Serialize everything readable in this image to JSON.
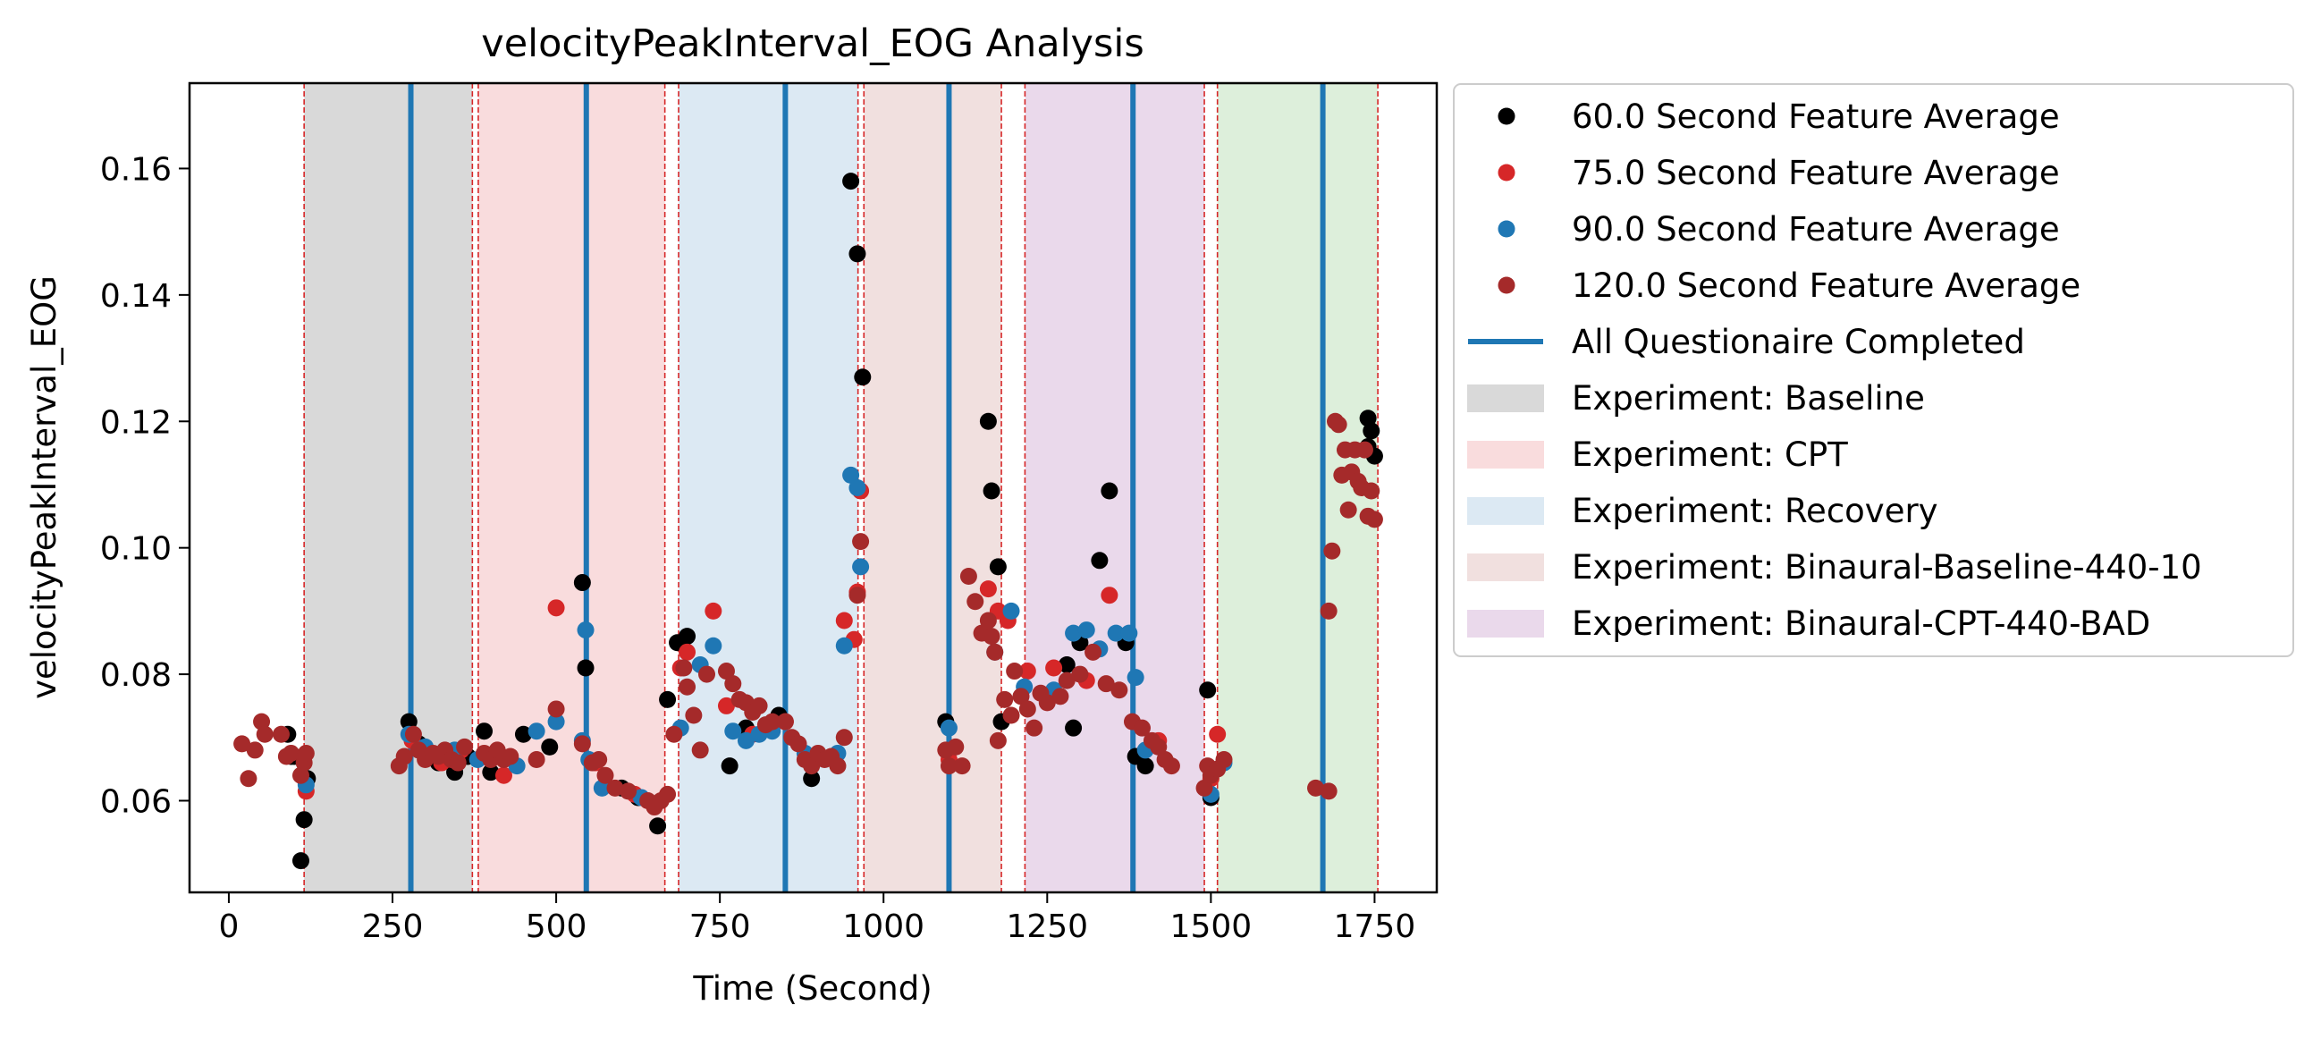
{
  "chart_data": {
    "type": "scatter",
    "title": "velocityPeakInterval_EOG Analysis",
    "xlabel": "Time (Second)",
    "ylabel": "velocityPeakInterval_EOG",
    "xlim": [
      -60,
      1845
    ],
    "ylim": [
      0.0455,
      0.1735
    ],
    "xticks": [
      0,
      250,
      500,
      750,
      1000,
      1250,
      1500,
      1750
    ],
    "xtick_labels": [
      "0",
      "250",
      "500",
      "750",
      "1000",
      "1250",
      "1500",
      "1750"
    ],
    "yticks": [
      0.06,
      0.08,
      0.1,
      0.12,
      0.14,
      0.16
    ],
    "ytick_labels": [
      "0.06",
      "0.08",
      "0.10",
      "0.12",
      "0.14",
      "0.16"
    ],
    "grid": false,
    "legend_position": "outside-upper-right",
    "legend": [
      {
        "label": "60.0 Second Feature Average",
        "kind": "marker",
        "color": "#000000"
      },
      {
        "label": "75.0 Second Feature Average",
        "kind": "marker",
        "color": "#d62728"
      },
      {
        "label": "90.0 Second Feature Average",
        "kind": "marker",
        "color": "#1f77b4"
      },
      {
        "label": "120.0 Second Feature Average",
        "kind": "marker",
        "color": "#a52a2a"
      },
      {
        "label": "All Questionaire Completed",
        "kind": "line",
        "color": "#1f77b4"
      },
      {
        "label": "Experiment: Baseline",
        "kind": "patch",
        "color": "#d9d9d9"
      },
      {
        "label": "Experiment: CPT",
        "kind": "patch",
        "color": "#f9dcdd"
      },
      {
        "label": "Experiment: Recovery",
        "kind": "patch",
        "color": "#dce9f3"
      },
      {
        "label": "Experiment: Binaural-Baseline-440-10",
        "kind": "patch",
        "color": "#f1e0df"
      },
      {
        "label": "Experiment: Binaural-CPT-440-BAD",
        "kind": "patch",
        "color": "#ead9eb"
      }
    ],
    "regions": [
      {
        "name": "Baseline",
        "x0": 115,
        "x1": 372,
        "color": "#d9d9d9"
      },
      {
        "name": "CPT",
        "x0": 381,
        "x1": 666,
        "color": "#f9dcdd"
      },
      {
        "name": "Recovery",
        "x0": 687,
        "x1": 961,
        "color": "#dce9f3"
      },
      {
        "name": "Binaural-Baseline-440-10",
        "x0": 970,
        "x1": 1180,
        "color": "#f1e0df"
      },
      {
        "name": "Binaural-CPT-440-BAD",
        "x0": 1216,
        "x1": 1490,
        "color": "#ead9eb"
      },
      {
        "name": "",
        "x0": 1510,
        "x1": 1755,
        "color": "#ddefdb"
      }
    ],
    "region_boundaries": [
      115,
      372,
      381,
      666,
      687,
      961,
      970,
      1180,
      1216,
      1490,
      1510,
      1755
    ],
    "questionnaire_lines": [
      278,
      546,
      850,
      1100,
      1381,
      1671
    ],
    "series": [
      {
        "name": "60.0 Second Feature Average",
        "color": "#000000",
        "points": [
          [
            90,
            0.0705
          ],
          [
            95,
            0.067
          ],
          [
            100,
            0.067
          ],
          [
            110,
            0.0505
          ],
          [
            115,
            0.057
          ],
          [
            120,
            0.0635
          ],
          [
            275,
            0.0725
          ],
          [
            290,
            0.069
          ],
          [
            320,
            0.066
          ],
          [
            345,
            0.0645
          ],
          [
            365,
            0.067
          ],
          [
            390,
            0.071
          ],
          [
            400,
            0.0645
          ],
          [
            450,
            0.0705
          ],
          [
            490,
            0.0685
          ],
          [
            540,
            0.0945
          ],
          [
            545,
            0.081
          ],
          [
            600,
            0.062
          ],
          [
            625,
            0.0605
          ],
          [
            655,
            0.056
          ],
          [
            670,
            0.076
          ],
          [
            685,
            0.085
          ],
          [
            700,
            0.086
          ],
          [
            765,
            0.0655
          ],
          [
            790,
            0.0715
          ],
          [
            840,
            0.0735
          ],
          [
            890,
            0.0635
          ],
          [
            950,
            0.158
          ],
          [
            960,
            0.1465
          ],
          [
            968,
            0.127
          ],
          [
            1095,
            0.0725
          ],
          [
            1160,
            0.12
          ],
          [
            1165,
            0.109
          ],
          [
            1175,
            0.097
          ],
          [
            1180,
            0.0725
          ],
          [
            1280,
            0.0815
          ],
          [
            1290,
            0.0715
          ],
          [
            1300,
            0.085
          ],
          [
            1330,
            0.098
          ],
          [
            1345,
            0.109
          ],
          [
            1370,
            0.085
          ],
          [
            1385,
            0.067
          ],
          [
            1400,
            0.0655
          ],
          [
            1495,
            0.0775
          ],
          [
            1500,
            0.0605
          ],
          [
            1740,
            0.1205
          ],
          [
            1745,
            0.1185
          ],
          [
            1740,
            0.116
          ],
          [
            1750,
            0.1145
          ]
        ]
      },
      {
        "name": "75.0 Second Feature Average",
        "color": "#d62728",
        "points": [
          [
            118,
            0.0615
          ],
          [
            280,
            0.0695
          ],
          [
            300,
            0.067
          ],
          [
            325,
            0.066
          ],
          [
            355,
            0.068
          ],
          [
            420,
            0.064
          ],
          [
            500,
            0.0905
          ],
          [
            560,
            0.066
          ],
          [
            620,
            0.061
          ],
          [
            690,
            0.081
          ],
          [
            700,
            0.0835
          ],
          [
            740,
            0.09
          ],
          [
            760,
            0.075
          ],
          [
            800,
            0.0705
          ],
          [
            850,
            0.0725
          ],
          [
            940,
            0.0885
          ],
          [
            955,
            0.0855
          ],
          [
            960,
            0.093
          ],
          [
            965,
            0.109
          ],
          [
            1100,
            0.0665
          ],
          [
            1160,
            0.0935
          ],
          [
            1175,
            0.09
          ],
          [
            1190,
            0.0885
          ],
          [
            1220,
            0.0805
          ],
          [
            1260,
            0.081
          ],
          [
            1310,
            0.079
          ],
          [
            1345,
            0.0925
          ],
          [
            1420,
            0.0695
          ],
          [
            1500,
            0.0635
          ],
          [
            1510,
            0.0705
          ]
        ]
      },
      {
        "name": "90.0 Second Feature Average",
        "color": "#1f77b4",
        "points": [
          [
            118,
            0.0625
          ],
          [
            275,
            0.0705
          ],
          [
            300,
            0.0685
          ],
          [
            345,
            0.068
          ],
          [
            380,
            0.0665
          ],
          [
            440,
            0.0655
          ],
          [
            470,
            0.071
          ],
          [
            500,
            0.0725
          ],
          [
            540,
            0.0695
          ],
          [
            545,
            0.087
          ],
          [
            550,
            0.0665
          ],
          [
            570,
            0.062
          ],
          [
            630,
            0.0605
          ],
          [
            690,
            0.0715
          ],
          [
            720,
            0.0815
          ],
          [
            740,
            0.0845
          ],
          [
            770,
            0.071
          ],
          [
            790,
            0.0695
          ],
          [
            810,
            0.0705
          ],
          [
            830,
            0.071
          ],
          [
            880,
            0.0675
          ],
          [
            900,
            0.067
          ],
          [
            930,
            0.0675
          ],
          [
            940,
            0.0845
          ],
          [
            950,
            0.1115
          ],
          [
            960,
            0.1095
          ],
          [
            965,
            0.097
          ],
          [
            1100,
            0.0715
          ],
          [
            1170,
            0.0835
          ],
          [
            1195,
            0.09
          ],
          [
            1215,
            0.078
          ],
          [
            1260,
            0.0775
          ],
          [
            1290,
            0.0865
          ],
          [
            1310,
            0.087
          ],
          [
            1330,
            0.084
          ],
          [
            1355,
            0.0865
          ],
          [
            1375,
            0.0865
          ],
          [
            1385,
            0.0795
          ],
          [
            1400,
            0.068
          ],
          [
            1500,
            0.061
          ],
          [
            1520,
            0.066
          ]
        ]
      },
      {
        "name": "120.0 Second Feature Average",
        "color": "#a52a2a",
        "points": [
          [
            20,
            0.069
          ],
          [
            30,
            0.0635
          ],
          [
            40,
            0.068
          ],
          [
            50,
            0.0725
          ],
          [
            55,
            0.0705
          ],
          [
            80,
            0.0705
          ],
          [
            88,
            0.067
          ],
          [
            95,
            0.0675
          ],
          [
            110,
            0.064
          ],
          [
            115,
            0.066
          ],
          [
            118,
            0.0675
          ],
          [
            260,
            0.0655
          ],
          [
            268,
            0.067
          ],
          [
            282,
            0.0705
          ],
          [
            290,
            0.068
          ],
          [
            300,
            0.0665
          ],
          [
            312,
            0.0675
          ],
          [
            320,
            0.067
          ],
          [
            330,
            0.068
          ],
          [
            340,
            0.0665
          ],
          [
            350,
            0.066
          ],
          [
            360,
            0.0685
          ],
          [
            390,
            0.0675
          ],
          [
            400,
            0.0665
          ],
          [
            410,
            0.068
          ],
          [
            420,
            0.0665
          ],
          [
            430,
            0.067
          ],
          [
            470,
            0.0665
          ],
          [
            500,
            0.0745
          ],
          [
            540,
            0.069
          ],
          [
            555,
            0.066
          ],
          [
            565,
            0.0665
          ],
          [
            575,
            0.064
          ],
          [
            590,
            0.062
          ],
          [
            610,
            0.0615
          ],
          [
            640,
            0.06
          ],
          [
            650,
            0.059
          ],
          [
            660,
            0.06
          ],
          [
            670,
            0.061
          ],
          [
            680,
            0.0705
          ],
          [
            695,
            0.081
          ],
          [
            700,
            0.078
          ],
          [
            710,
            0.0735
          ],
          [
            720,
            0.068
          ],
          [
            730,
            0.08
          ],
          [
            760,
            0.0805
          ],
          [
            770,
            0.0785
          ],
          [
            780,
            0.076
          ],
          [
            790,
            0.0755
          ],
          [
            800,
            0.074
          ],
          [
            810,
            0.075
          ],
          [
            820,
            0.072
          ],
          [
            830,
            0.0725
          ],
          [
            850,
            0.0725
          ],
          [
            860,
            0.07
          ],
          [
            870,
            0.069
          ],
          [
            880,
            0.0665
          ],
          [
            890,
            0.0655
          ],
          [
            900,
            0.0675
          ],
          [
            910,
            0.0665
          ],
          [
            920,
            0.067
          ],
          [
            930,
            0.0655
          ],
          [
            940,
            0.07
          ],
          [
            960,
            0.0925
          ],
          [
            965,
            0.101
          ],
          [
            1095,
            0.068
          ],
          [
            1100,
            0.0655
          ],
          [
            1110,
            0.0685
          ],
          [
            1120,
            0.0655
          ],
          [
            1130,
            0.0955
          ],
          [
            1140,
            0.0915
          ],
          [
            1150,
            0.0865
          ],
          [
            1160,
            0.0885
          ],
          [
            1165,
            0.086
          ],
          [
            1170,
            0.0835
          ],
          [
            1175,
            0.0695
          ],
          [
            1185,
            0.076
          ],
          [
            1195,
            0.0735
          ],
          [
            1200,
            0.0805
          ],
          [
            1210,
            0.0765
          ],
          [
            1220,
            0.0745
          ],
          [
            1230,
            0.0715
          ],
          [
            1240,
            0.077
          ],
          [
            1250,
            0.0755
          ],
          [
            1270,
            0.0765
          ],
          [
            1280,
            0.079
          ],
          [
            1300,
            0.08
          ],
          [
            1320,
            0.0835
          ],
          [
            1340,
            0.0785
          ],
          [
            1360,
            0.0775
          ],
          [
            1380,
            0.0725
          ],
          [
            1395,
            0.0715
          ],
          [
            1410,
            0.0695
          ],
          [
            1420,
            0.0685
          ],
          [
            1430,
            0.0665
          ],
          [
            1440,
            0.0655
          ],
          [
            1490,
            0.062
          ],
          [
            1495,
            0.0655
          ],
          [
            1500,
            0.064
          ],
          [
            1510,
            0.065
          ],
          [
            1520,
            0.0665
          ],
          [
            1660,
            0.062
          ],
          [
            1680,
            0.0615
          ],
          [
            1680,
            0.09
          ],
          [
            1685,
            0.0995
          ],
          [
            1690,
            0.12
          ],
          [
            1695,
            0.1195
          ],
          [
            1700,
            0.1115
          ],
          [
            1705,
            0.1155
          ],
          [
            1710,
            0.106
          ],
          [
            1715,
            0.112
          ],
          [
            1720,
            0.1155
          ],
          [
            1725,
            0.1105
          ],
          [
            1730,
            0.1095
          ],
          [
            1735,
            0.1155
          ],
          [
            1740,
            0.105
          ],
          [
            1745,
            0.109
          ],
          [
            1750,
            0.1045
          ]
        ]
      }
    ]
  }
}
